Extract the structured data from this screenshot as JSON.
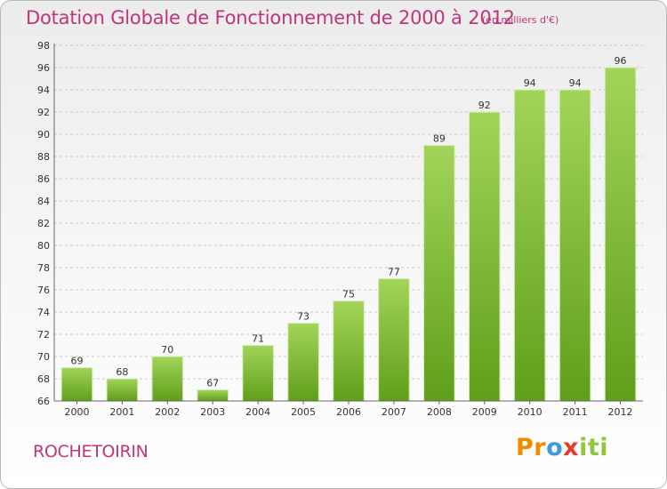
{
  "header": {
    "title": "Dotation Globale de Fonctionnement de 2000 à 2012",
    "subtitle": "(en milliers d'€)"
  },
  "footer": {
    "place": "ROCHETOIRIN",
    "logo_parts": [
      "Pr",
      "o",
      "x",
      "iti"
    ]
  },
  "colors": {
    "bar_top": "#a2d45a",
    "bar_bottom": "#5f9f1a",
    "title": "#c0357a"
  },
  "chart_data": {
    "type": "bar",
    "title": "Dotation Globale de Fonctionnement de 2000 à 2012",
    "subtitle": "(en milliers d'€)",
    "xlabel": "",
    "ylabel": "",
    "categories": [
      "2000",
      "2001",
      "2002",
      "2003",
      "2004",
      "2005",
      "2006",
      "2007",
      "2008",
      "2009",
      "2010",
      "2011",
      "2012"
    ],
    "values": [
      69,
      68,
      70,
      67,
      71,
      73,
      75,
      77,
      89,
      92,
      94,
      94,
      96
    ],
    "ylim": [
      66,
      98
    ],
    "yticks": [
      66,
      68,
      70,
      72,
      74,
      76,
      78,
      80,
      82,
      84,
      86,
      88,
      90,
      92,
      94,
      96,
      98
    ],
    "grid": "horizontal dashed",
    "legend": "none"
  }
}
